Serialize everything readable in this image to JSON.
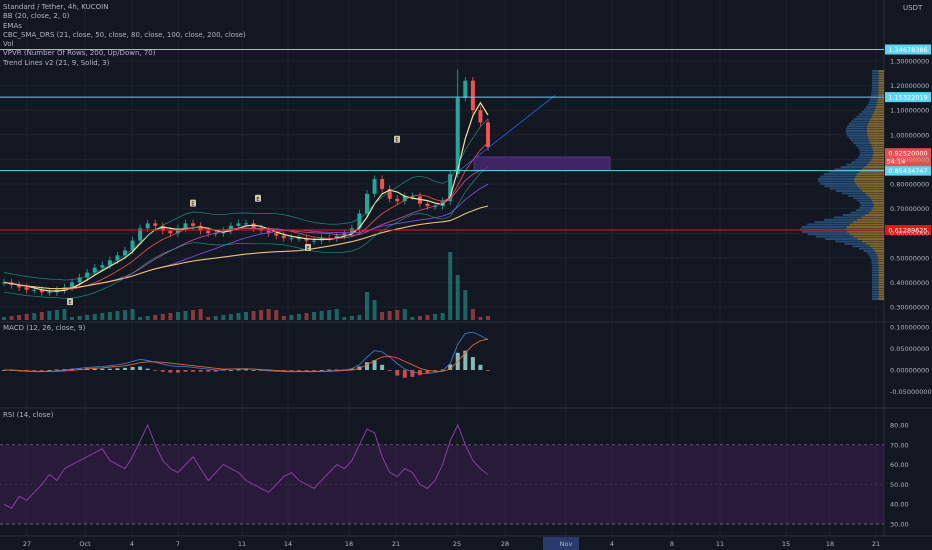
{
  "header": {
    "symbol": "Standard / Tether, 4h, KUCOIN",
    "indicators": [
      "BB (20, close, 2, 0)",
      "EMAs",
      "CBC_SMA_DRS (21, close, 50, close, 80, close, 100, close, 200, close)",
      "Vol",
      "VPVR (Number Of Rows, 200, Up/Down, 70)",
      "Trend Lines v2 (21, 9, Solid, 3)"
    ],
    "currency": "USDT"
  },
  "colors": {
    "background": "#131722",
    "up": "#26a69a",
    "down": "#ef5350",
    "cyan_line": "#5fd4f2",
    "red_line": "#e01818",
    "rsi_band": "#3b1f4d",
    "rsi_line": "#8e3aa8",
    "macd_line": "#3d79c4",
    "signal_line": "#e0643c",
    "purple_box": "#4a2673",
    "sma_yellow": "#f2e6a0"
  },
  "chart_data": [
    {
      "type": "line",
      "pane": "price",
      "description_series": "candlestick price with moving averages and Bollinger bands",
      "y_ticks": [
        "1.30000000",
        "1.20000000",
        "1.10000000",
        "1.00000000",
        "0.90000000",
        "0.80000000",
        "0.70000000",
        "0.60000000",
        "0.50000000",
        "0.40000000",
        "0.30000000"
      ],
      "ylim": [
        0.25,
        1.45
      ],
      "horizontal_levels": [
        {
          "label": "1.34678386",
          "value": 1.34678386,
          "color": "#5fd4f2"
        },
        {
          "label": "1.15322019",
          "value": 1.15322019,
          "color": "#5fd4f2"
        },
        {
          "label": "0.85434747",
          "value": 0.85434747,
          "color": "#5fd4f2"
        },
        {
          "label": "0.61289625",
          "value": 0.61289625,
          "color": "#e01818"
        }
      ],
      "last_price": {
        "label": "0.92520000",
        "value": 0.9252,
        "countdown": "54:14"
      },
      "x_ticks": [
        "27",
        "Oct",
        "4",
        "7",
        "11",
        "14",
        "18",
        "21",
        "25",
        "28",
        "Nov",
        "4",
        "8",
        "11",
        "15",
        "18",
        "21"
      ],
      "close_series": [
        0.4,
        0.39,
        0.38,
        0.37,
        0.37,
        0.36,
        0.36,
        0.37,
        0.38,
        0.4,
        0.42,
        0.44,
        0.46,
        0.47,
        0.49,
        0.51,
        0.53,
        0.57,
        0.62,
        0.64,
        0.63,
        0.61,
        0.6,
        0.62,
        0.64,
        0.63,
        0.61,
        0.6,
        0.6,
        0.61,
        0.63,
        0.64,
        0.64,
        0.62,
        0.61,
        0.6,
        0.59,
        0.58,
        0.58,
        0.58,
        0.57,
        0.57,
        0.58,
        0.58,
        0.59,
        0.6,
        0.62,
        0.68,
        0.76,
        0.82,
        0.78,
        0.74,
        0.73,
        0.75,
        0.75,
        0.72,
        0.71,
        0.71,
        0.73,
        0.84,
        1.15,
        1.22,
        1.1,
        1.05,
        0.95
      ],
      "markers": [
        "E",
        "E",
        "E",
        "E",
        "E",
        "E"
      ]
    },
    {
      "type": "line",
      "pane": "macd",
      "title": "MACD (12, 26, close, 9)",
      "y_ticks": [
        "0.10000000",
        "0.05000000",
        "0.00000000",
        "-0.05000000"
      ],
      "ylim": [
        -0.075,
        0.11
      ],
      "series": [
        {
          "values": [
            0.0,
            0.0,
            -0.002,
            -0.003,
            -0.004,
            -0.004,
            -0.003,
            -0.002,
            0.0,
            0.002,
            0.004,
            0.006,
            0.007,
            0.008,
            0.01,
            0.012,
            0.015,
            0.02,
            0.025,
            0.022,
            0.018,
            0.014,
            0.01,
            0.008,
            0.008,
            0.006,
            0.004,
            0.002,
            0.0,
            0.0,
            0.002,
            0.003,
            0.003,
            0.002,
            0.0,
            -0.002,
            -0.003,
            -0.004,
            -0.004,
            -0.004,
            -0.004,
            -0.004,
            -0.003,
            -0.002,
            -0.001,
            0.0,
            0.003,
            0.012,
            0.03,
            0.045,
            0.042,
            0.03,
            0.015,
            0.002,
            -0.004,
            -0.008,
            -0.008,
            -0.006,
            -0.002,
            0.015,
            0.06,
            0.085,
            0.088,
            0.08,
            0.07
          ]
        },
        {
          "values": [
            0.0,
            0.0,
            -0.001,
            -0.002,
            -0.003,
            -0.003,
            -0.003,
            -0.003,
            -0.002,
            -0.001,
            0.001,
            0.002,
            0.004,
            0.005,
            0.007,
            0.008,
            0.01,
            0.013,
            0.017,
            0.019,
            0.019,
            0.018,
            0.016,
            0.014,
            0.012,
            0.01,
            0.008,
            0.006,
            0.004,
            0.002,
            0.002,
            0.002,
            0.002,
            0.002,
            0.001,
            0.0,
            -0.001,
            -0.002,
            -0.003,
            -0.003,
            -0.003,
            -0.003,
            -0.003,
            -0.003,
            -0.002,
            -0.001,
            0.0,
            0.004,
            0.012,
            0.022,
            0.03,
            0.032,
            0.028,
            0.02,
            0.012,
            0.004,
            -0.001,
            -0.003,
            -0.003,
            0.002,
            0.02,
            0.04,
            0.058,
            0.068,
            0.072
          ]
        }
      ]
    },
    {
      "type": "line",
      "pane": "rsi",
      "title": "RSI (14, close)",
      "y_ticks": [
        "80.00",
        "70.00",
        "60.00",
        "50.00",
        "40.00",
        "30.00"
      ],
      "ylim": [
        26,
        84
      ],
      "band": [
        30,
        70
      ],
      "values": [
        40,
        38,
        44,
        42,
        46,
        50,
        55,
        52,
        58,
        60,
        62,
        64,
        66,
        68,
        62,
        60,
        58,
        64,
        72,
        80,
        70,
        62,
        58,
        56,
        60,
        64,
        58,
        52,
        56,
        60,
        58,
        56,
        52,
        50,
        48,
        46,
        50,
        54,
        56,
        52,
        50,
        48,
        52,
        56,
        60,
        58,
        62,
        70,
        78,
        76,
        64,
        56,
        54,
        58,
        56,
        50,
        48,
        52,
        60,
        72,
        80,
        70,
        62,
        58,
        55
      ]
    }
  ]
}
